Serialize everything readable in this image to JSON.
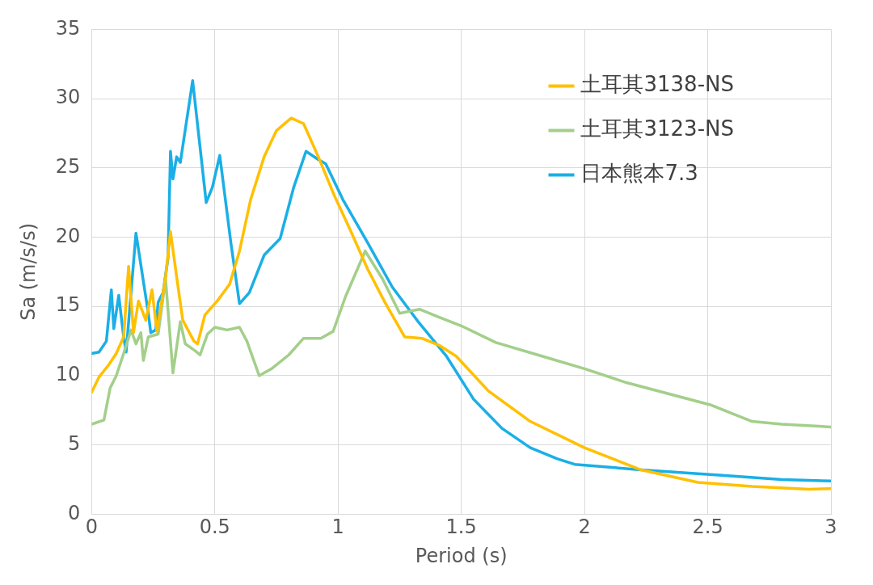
{
  "chart_data": {
    "type": "line",
    "xlabel": "Period (s)",
    "ylabel": "Sa (m/s/s)",
    "xlim": [
      0,
      3
    ],
    "xticks": [
      0,
      0.5,
      1,
      1.5,
      2,
      2.5,
      3
    ],
    "ylim": [
      0,
      35
    ],
    "yticks": [
      0,
      5,
      10,
      15,
      20,
      25,
      30,
      35
    ],
    "grid": true,
    "legend": "top right",
    "marker": "none",
    "line_style": "solid",
    "series": [
      {
        "name": "土耳其3138-NS",
        "color": "#ffc000",
        "x": [
          0,
          0.03,
          0.07,
          0.1,
          0.13,
          0.15,
          0.17,
          0.19,
          0.22,
          0.245,
          0.265,
          0.3,
          0.32,
          0.35,
          0.37,
          0.415,
          0.43,
          0.46,
          0.51,
          0.56,
          0.6,
          0.645,
          0.7,
          0.75,
          0.81,
          0.86,
          0.92,
          0.985,
          1.05,
          1.12,
          1.19,
          1.27,
          1.34,
          1.41,
          1.48,
          1.61,
          1.78,
          2.0,
          2.23,
          2.46,
          2.68,
          2.91,
          3.0
        ],
        "values": [
          8.8,
          9.9,
          10.8,
          11.6,
          12.8,
          17.9,
          13.1,
          15.4,
          14.0,
          16.2,
          13.2,
          17.1,
          20.4,
          16.5,
          14.0,
          12.5,
          12.3,
          14.4,
          15.4,
          16.6,
          19.0,
          22.7,
          25.8,
          27.7,
          28.6,
          28.2,
          25.8,
          23.0,
          20.5,
          17.7,
          15.3,
          12.8,
          12.7,
          12.2,
          11.4,
          8.9,
          6.7,
          4.8,
          3.2,
          2.3,
          2.0,
          1.8,
          1.85
        ]
      },
      {
        "name": "土耳其3123-NS",
        "color": "#a3cf8a",
        "x": [
          0,
          0.05,
          0.075,
          0.1,
          0.13,
          0.16,
          0.18,
          0.2,
          0.21,
          0.23,
          0.27,
          0.3,
          0.33,
          0.36,
          0.38,
          0.42,
          0.44,
          0.47,
          0.5,
          0.55,
          0.6,
          0.63,
          0.68,
          0.7,
          0.73,
          0.8,
          0.86,
          0.93,
          0.98,
          1.03,
          1.11,
          1.18,
          1.25,
          1.33,
          1.4,
          1.5,
          1.64,
          1.83,
          2.0,
          2.17,
          2.34,
          2.51,
          2.68,
          2.8,
          3.0
        ],
        "values": [
          6.5,
          6.8,
          9.1,
          10.0,
          11.6,
          13.3,
          12.3,
          13.1,
          11.1,
          12.8,
          13.0,
          17.0,
          10.2,
          13.9,
          12.3,
          11.8,
          11.5,
          13.0,
          13.5,
          13.3,
          13.5,
          12.5,
          10.0,
          10.2,
          10.5,
          11.5,
          12.7,
          12.7,
          13.2,
          15.7,
          19.0,
          17.0,
          14.5,
          14.8,
          14.3,
          13.6,
          12.4,
          11.4,
          10.5,
          9.5,
          8.7,
          7.9,
          6.7,
          6.5,
          6.3
        ]
      },
      {
        "name": "日本熊本7.3",
        "color": "#1aafe6",
        "x": [
          0,
          0.03,
          0.06,
          0.08,
          0.09,
          0.11,
          0.13,
          0.14,
          0.18,
          0.23,
          0.24,
          0.26,
          0.27,
          0.29,
          0.31,
          0.32,
          0.33,
          0.345,
          0.36,
          0.41,
          0.465,
          0.49,
          0.52,
          0.565,
          0.6,
          0.64,
          0.7,
          0.765,
          0.82,
          0.87,
          0.92,
          0.95,
          1.02,
          1.12,
          1.22,
          1.325,
          1.44,
          1.55,
          1.665,
          1.78,
          1.89,
          1.96,
          2.23,
          2.57,
          2.8,
          3.0
        ],
        "values": [
          11.6,
          11.7,
          12.5,
          16.2,
          13.4,
          15.8,
          12.8,
          11.7,
          20.3,
          14.5,
          13.1,
          13.3,
          15.3,
          16.0,
          18.5,
          26.2,
          24.2,
          25.8,
          25.4,
          31.3,
          22.5,
          23.6,
          25.9,
          19.6,
          15.2,
          16.0,
          18.7,
          19.9,
          23.6,
          26.2,
          25.6,
          25.3,
          22.7,
          19.6,
          16.4,
          13.9,
          11.4,
          8.3,
          6.2,
          4.8,
          4.0,
          3.6,
          3.2,
          2.8,
          2.5,
          2.4
        ]
      }
    ]
  }
}
